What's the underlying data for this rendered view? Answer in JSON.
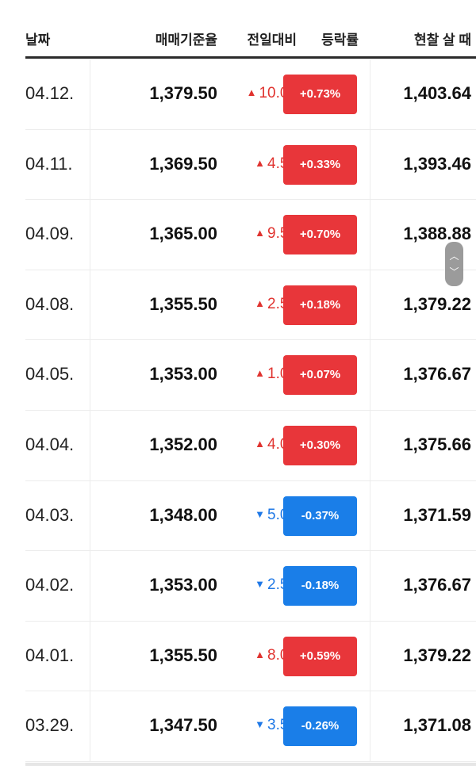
{
  "header": {
    "date": "날짜",
    "base_rate": "매매기준율",
    "change": "전일대비",
    "pct": "등락률",
    "cash_buy": "현찰 살 때"
  },
  "rows": [
    {
      "date": "04.12.",
      "rate": "1,379.50",
      "dir": "up",
      "change": "10.00",
      "pct": "+0.73%",
      "cash": "1,403.64"
    },
    {
      "date": "04.11.",
      "rate": "1,369.50",
      "dir": "up",
      "change": "4.50",
      "pct": "+0.33%",
      "cash": "1,393.46"
    },
    {
      "date": "04.09.",
      "rate": "1,365.00",
      "dir": "up",
      "change": "9.50",
      "pct": "+0.70%",
      "cash": "1,388.88"
    },
    {
      "date": "04.08.",
      "rate": "1,355.50",
      "dir": "up",
      "change": "2.50",
      "pct": "+0.18%",
      "cash": "1,379.22"
    },
    {
      "date": "04.05.",
      "rate": "1,353.00",
      "dir": "up",
      "change": "1.00",
      "pct": "+0.07%",
      "cash": "1,376.67"
    },
    {
      "date": "04.04.",
      "rate": "1,352.00",
      "dir": "up",
      "change": "4.00",
      "pct": "+0.30%",
      "cash": "1,375.66"
    },
    {
      "date": "04.03.",
      "rate": "1,348.00",
      "dir": "down",
      "change": "5.00",
      "pct": "-0.37%",
      "cash": "1,371.59"
    },
    {
      "date": "04.02.",
      "rate": "1,353.00",
      "dir": "down",
      "change": "2.50",
      "pct": "-0.18%",
      "cash": "1,376.67"
    },
    {
      "date": "04.01.",
      "rate": "1,355.50",
      "dir": "up",
      "change": "8.00",
      "pct": "+0.59%",
      "cash": "1,379.22"
    },
    {
      "date": "03.29.",
      "rate": "1,347.50",
      "dir": "down",
      "change": "3.50",
      "pct": "-0.26%",
      "cash": "1,371.08"
    }
  ],
  "glyphs": {
    "up": "▲",
    "down": "▼",
    "scroll_up": "︿",
    "scroll_down": "﹀"
  },
  "colors": {
    "up": "#e8363a",
    "down": "#1a7ee8"
  }
}
